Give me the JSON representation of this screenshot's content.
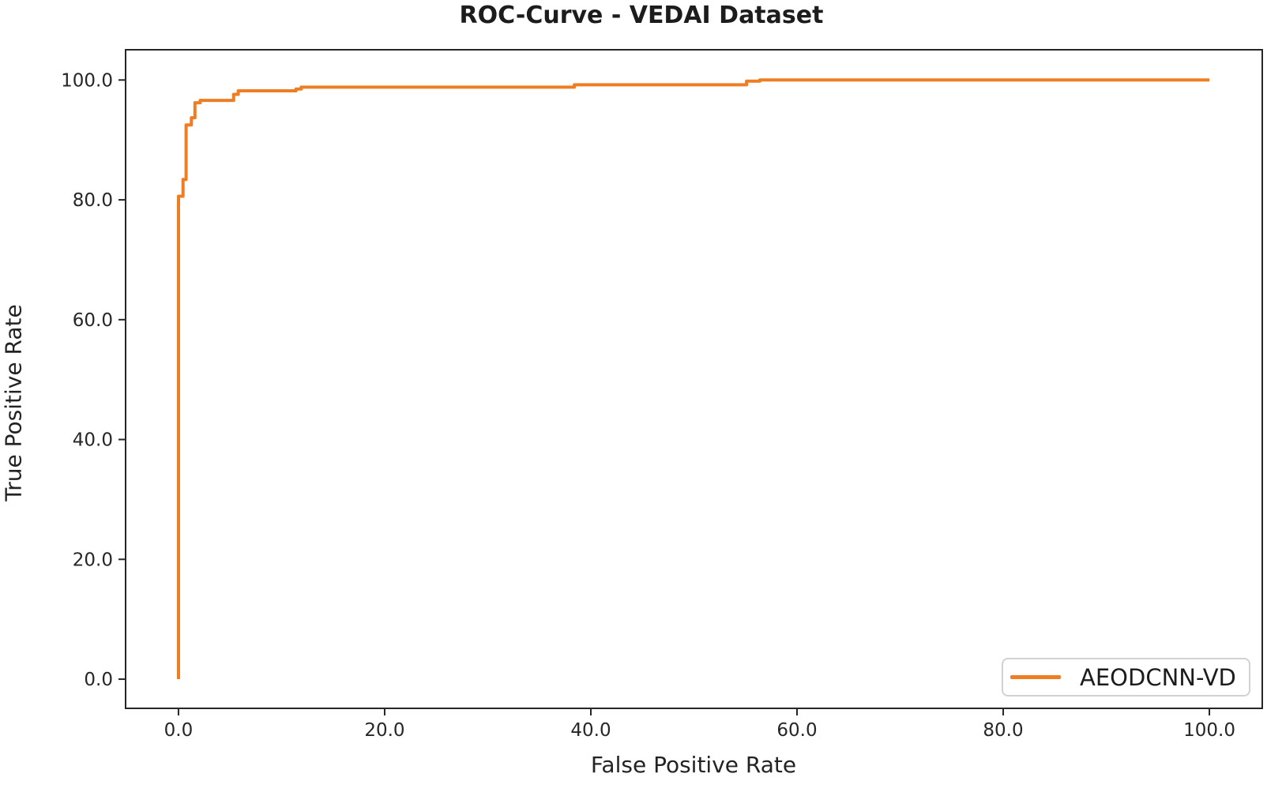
{
  "figure": {
    "title": "ROC-Curve - VEDAI Dataset",
    "xlabel": "False Positive Rate",
    "ylabel": "True Positive Rate"
  },
  "legend": {
    "position": "lower right",
    "entries": [
      {
        "label": "AEODCNN-VD",
        "color": "#ee7d23"
      }
    ]
  },
  "chart_data": {
    "type": "line",
    "subtype": "roc-step-curve",
    "title": "ROC-Curve - VEDAI Dataset",
    "xlabel": "False Positive Rate",
    "ylabel": "True Positive Rate",
    "xlim": [
      -5.13,
      105.13
    ],
    "ylim": [
      -4.87,
      105.05
    ],
    "grid": false,
    "axis_color": "#262626",
    "text_color": "#262626",
    "xticks": {
      "values": [
        0,
        20,
        40,
        60,
        80,
        100
      ],
      "labels": [
        "0.0",
        "20.0",
        "40.0",
        "60.0",
        "80.0",
        "100.0"
      ]
    },
    "yticks": {
      "values": [
        0,
        20,
        40,
        60,
        80,
        100
      ],
      "labels": [
        "0.0",
        "20.0",
        "40.0",
        "60.0",
        "80.0",
        "100.0"
      ]
    },
    "series": [
      {
        "name": "AEODCNN-VD",
        "color": "#ee7d23",
        "line_width": 4,
        "points": [
          [
            0.0,
            0.0
          ],
          [
            0.0,
            80.6
          ],
          [
            0.44,
            80.6
          ],
          [
            0.44,
            83.4
          ],
          [
            0.74,
            83.4
          ],
          [
            0.74,
            92.5
          ],
          [
            1.25,
            92.5
          ],
          [
            1.25,
            93.7
          ],
          [
            1.6,
            93.7
          ],
          [
            1.6,
            96.2
          ],
          [
            2.1,
            96.2
          ],
          [
            2.1,
            96.6
          ],
          [
            5.35,
            96.6
          ],
          [
            5.35,
            97.6
          ],
          [
            5.8,
            97.6
          ],
          [
            5.8,
            98.2
          ],
          [
            11.4,
            98.2
          ],
          [
            11.4,
            98.5
          ],
          [
            11.9,
            98.5
          ],
          [
            11.9,
            98.8
          ],
          [
            38.4,
            98.8
          ],
          [
            38.4,
            99.2
          ],
          [
            55.1,
            99.2
          ],
          [
            55.1,
            99.8
          ],
          [
            56.4,
            99.8
          ],
          [
            56.4,
            100.0
          ],
          [
            100.0,
            100.0
          ]
        ]
      }
    ]
  }
}
